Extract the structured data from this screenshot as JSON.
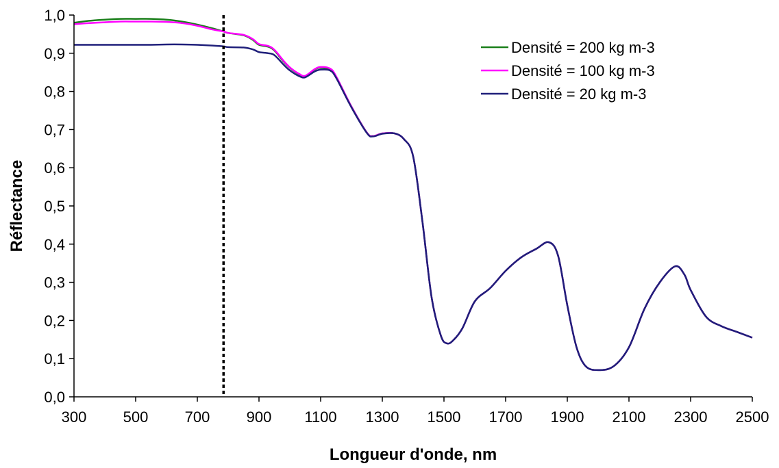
{
  "chart_data": {
    "type": "line",
    "title": "",
    "xlabel": "Longueur d'onde, nm",
    "ylabel": "Réflectance",
    "xlim": [
      300,
      2500
    ],
    "ylim": [
      0,
      1.0
    ],
    "x_ticks": [
      300,
      500,
      700,
      900,
      1100,
      1300,
      1500,
      1700,
      1900,
      2100,
      2300,
      2500
    ],
    "x_tick_labels": [
      "300",
      "500",
      "700",
      "900",
      "1100",
      "1300",
      "1500",
      "1700",
      "1900",
      "2100",
      "2300",
      "2500"
    ],
    "y_ticks": [
      0,
      0.1,
      0.2,
      0.3,
      0.4,
      0.5,
      0.6,
      0.7,
      0.8,
      0.9,
      1.0
    ],
    "y_tick_labels": [
      "0,0",
      "0,1",
      "0,2",
      "0,3",
      "0,4",
      "0,5",
      "0,6",
      "0,7",
      "0,8",
      "0,9",
      "1,0"
    ],
    "grid": false,
    "legend_position": "top-right",
    "vertical_marker_x": 785,
    "series": [
      {
        "name": "Densité = 200 kg m-3",
        "color": "#1a7f1a",
        "x": [
          300,
          350,
          400,
          450,
          500,
          550,
          600,
          650,
          700,
          750,
          785,
          800,
          850,
          880,
          900,
          930,
          950,
          980,
          1000,
          1030,
          1050,
          1080,
          1100,
          1130,
          1150,
          1200,
          1250,
          1270,
          1300,
          1340,
          1370,
          1400,
          1430,
          1460,
          1490,
          1510,
          1530,
          1560,
          1600,
          1650,
          1700,
          1750,
          1800,
          1840,
          1870,
          1900,
          1930,
          1960,
          2000,
          2050,
          2100,
          2150,
          2200,
          2250,
          2280,
          2300,
          2350,
          2400,
          2450,
          2500
        ],
        "values": [
          0.98,
          0.985,
          0.988,
          0.99,
          0.99,
          0.99,
          0.988,
          0.983,
          0.975,
          0.965,
          0.957,
          0.953,
          0.947,
          0.935,
          0.922,
          0.917,
          0.907,
          0.878,
          0.862,
          0.845,
          0.84,
          0.857,
          0.862,
          0.857,
          0.838,
          0.76,
          0.692,
          0.683,
          0.69,
          0.69,
          0.675,
          0.63,
          0.46,
          0.26,
          0.16,
          0.14,
          0.148,
          0.18,
          0.25,
          0.285,
          0.33,
          0.365,
          0.388,
          0.405,
          0.37,
          0.24,
          0.13,
          0.08,
          0.07,
          0.08,
          0.13,
          0.23,
          0.3,
          0.342,
          0.32,
          0.28,
          0.21,
          0.185,
          0.17,
          0.155
        ]
      },
      {
        "name": "Densité = 100 kg m-3",
        "color": "#ff00ff",
        "x": [
          300,
          350,
          400,
          450,
          500,
          550,
          600,
          650,
          700,
          750,
          785,
          800,
          850,
          880,
          900,
          930,
          950,
          980,
          1000,
          1030,
          1050,
          1080,
          1100,
          1130,
          1150,
          1200,
          1250,
          1270,
          1300,
          1340,
          1370,
          1400,
          1430,
          1460,
          1490,
          1510,
          1530,
          1560,
          1600,
          1650,
          1700,
          1750,
          1800,
          1840,
          1870,
          1900,
          1930,
          1960,
          2000,
          2050,
          2100,
          2150,
          2200,
          2250,
          2280,
          2300,
          2350,
          2400,
          2450,
          2500
        ],
        "values": [
          0.976,
          0.979,
          0.981,
          0.983,
          0.983,
          0.983,
          0.982,
          0.979,
          0.972,
          0.962,
          0.957,
          0.953,
          0.948,
          0.937,
          0.924,
          0.919,
          0.909,
          0.88,
          0.863,
          0.846,
          0.841,
          0.858,
          0.864,
          0.86,
          0.84,
          0.76,
          0.692,
          0.683,
          0.69,
          0.69,
          0.675,
          0.63,
          0.46,
          0.26,
          0.16,
          0.14,
          0.148,
          0.18,
          0.25,
          0.285,
          0.33,
          0.365,
          0.388,
          0.405,
          0.37,
          0.24,
          0.13,
          0.08,
          0.07,
          0.08,
          0.13,
          0.23,
          0.3,
          0.342,
          0.32,
          0.28,
          0.21,
          0.185,
          0.17,
          0.155
        ]
      },
      {
        "name": "Densité = 20 kg m-3",
        "color": "#1f1f7a",
        "x": [
          300,
          350,
          400,
          450,
          500,
          550,
          600,
          650,
          700,
          750,
          785,
          800,
          850,
          880,
          900,
          930,
          950,
          980,
          1000,
          1030,
          1050,
          1080,
          1100,
          1130,
          1150,
          1200,
          1250,
          1270,
          1300,
          1340,
          1370,
          1400,
          1430,
          1460,
          1490,
          1510,
          1530,
          1560,
          1600,
          1650,
          1700,
          1750,
          1800,
          1840,
          1870,
          1900,
          1930,
          1960,
          2000,
          2050,
          2100,
          2150,
          2200,
          2250,
          2280,
          2300,
          2350,
          2400,
          2450,
          2500
        ],
        "values": [
          0.922,
          0.922,
          0.922,
          0.922,
          0.922,
          0.922,
          0.923,
          0.923,
          0.922,
          0.92,
          0.918,
          0.916,
          0.915,
          0.91,
          0.903,
          0.9,
          0.895,
          0.87,
          0.855,
          0.84,
          0.837,
          0.852,
          0.857,
          0.855,
          0.836,
          0.758,
          0.691,
          0.682,
          0.689,
          0.69,
          0.675,
          0.63,
          0.46,
          0.26,
          0.16,
          0.14,
          0.148,
          0.18,
          0.25,
          0.285,
          0.33,
          0.365,
          0.388,
          0.405,
          0.37,
          0.24,
          0.13,
          0.08,
          0.07,
          0.08,
          0.13,
          0.23,
          0.3,
          0.342,
          0.32,
          0.28,
          0.21,
          0.185,
          0.17,
          0.155
        ]
      }
    ]
  }
}
